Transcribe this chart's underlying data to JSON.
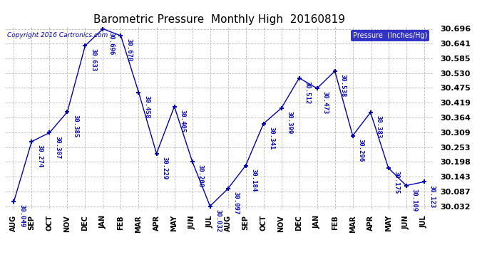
{
  "title": "Barometric Pressure  Monthly High  20160819",
  "copyright": "Copyright 2016 Cartronics.com",
  "legend_label": "Pressure  (Inches/Hg)",
  "months": [
    "AUG",
    "SEP",
    "OCT",
    "NOV",
    "DEC",
    "JAN",
    "FEB",
    "MAR",
    "APR",
    "MAY",
    "JUN",
    "JUL",
    "AUG",
    "SEP",
    "OCT",
    "NOV",
    "DEC",
    "JAN",
    "FEB",
    "MAR",
    "APR",
    "MAY",
    "JUN",
    "JUL"
  ],
  "values": [
    30.049,
    30.274,
    30.307,
    30.385,
    30.633,
    30.696,
    30.67,
    30.458,
    30.229,
    30.405,
    30.2,
    30.032,
    30.097,
    30.184,
    30.341,
    30.399,
    30.512,
    30.473,
    30.538,
    30.296,
    30.383,
    30.175,
    30.109,
    30.123
  ],
  "ylim_min": 30.032,
  "ylim_max": 30.696,
  "yticks": [
    30.032,
    30.087,
    30.143,
    30.198,
    30.253,
    30.309,
    30.364,
    30.419,
    30.475,
    30.53,
    30.585,
    30.641,
    30.696
  ],
  "line_color": "#0000bb",
  "bg_color": "#ffffff",
  "grid_color": "#aaaaaa",
  "title_fontsize": 11,
  "label_fontsize": 7,
  "annotation_fontsize": 6.5,
  "copyright_fontsize": 6.5,
  "ytick_fontsize": 8
}
